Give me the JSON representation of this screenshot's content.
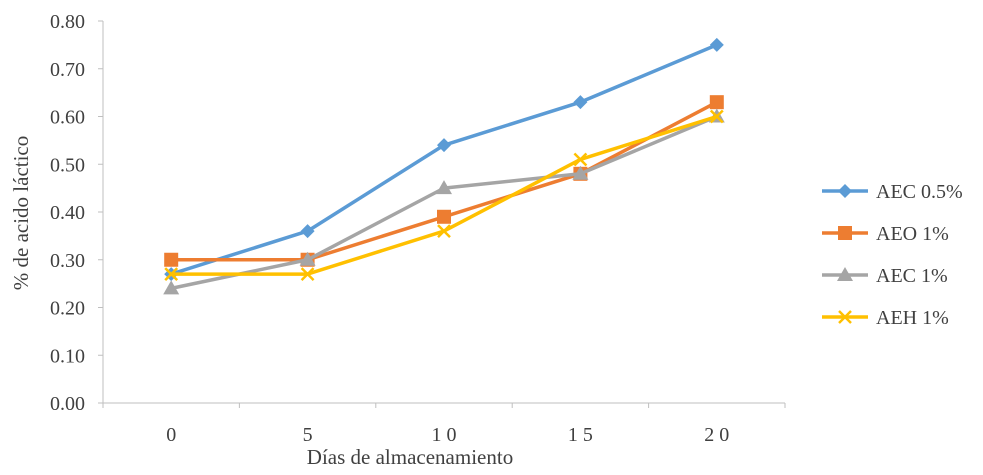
{
  "chart_data": {
    "type": "line",
    "title": "",
    "xlabel": "Días de almacenamiento",
    "ylabel": "% de acido láctico",
    "categories": [
      "0",
      "5",
      "1 0",
      "1 5",
      "2 0"
    ],
    "ylim": [
      0,
      0.8
    ],
    "yticks": [
      "0.00",
      "0.10",
      "0.20",
      "0.30",
      "0.40",
      "0.50",
      "0.60",
      "0.70",
      "0.80"
    ],
    "grid": false,
    "legend_position": "right",
    "series": [
      {
        "name": "AEC 0.5%",
        "color": "#5b9bd5",
        "marker": "diamond",
        "values": [
          0.27,
          0.36,
          0.54,
          0.63,
          0.75
        ]
      },
      {
        "name": "AEO 1%",
        "color": "#ed7d31",
        "marker": "square",
        "values": [
          0.3,
          0.3,
          0.39,
          0.48,
          0.63
        ]
      },
      {
        "name": "AEC 1%",
        "color": "#a5a5a5",
        "marker": "triangle",
        "values": [
          0.24,
          0.3,
          0.45,
          0.48,
          0.6
        ]
      },
      {
        "name": "AEH 1%",
        "color": "#ffc000",
        "marker": "x",
        "values": [
          0.27,
          0.27,
          0.36,
          0.51,
          0.6
        ]
      }
    ]
  }
}
